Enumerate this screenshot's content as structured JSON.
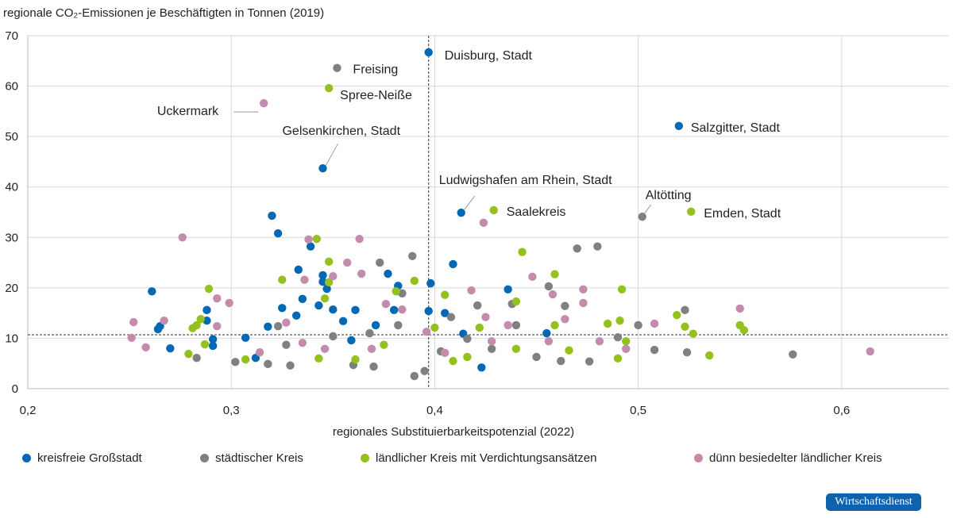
{
  "chart_data": {
    "type": "scatter",
    "title": "",
    "ylabel": "regionale CO₂-Emissionen je Beschäftigten in Tonnen (2019)",
    "xlabel": "regionales Substituierbarkeitspotenzial (2022)",
    "xlim": [
      0.2,
      0.65
    ],
    "ylim": [
      0,
      70
    ],
    "xticks": [
      "0,2",
      "0,3",
      "0,4",
      "0,5",
      "0,6"
    ],
    "xtick_values": [
      0.2,
      0.3,
      0.4,
      0.5,
      0.6
    ],
    "yticks": [
      "0",
      "10",
      "20",
      "30",
      "40",
      "50",
      "60",
      "70"
    ],
    "ytick_values": [
      0,
      10,
      20,
      30,
      40,
      50,
      60,
      70
    ],
    "grid": true,
    "legend_placement": "bottom",
    "reference_lines": {
      "x_mean": 0.397,
      "y_mean": 10.7
    },
    "series": [
      {
        "name": "kreisfreie Großstadt",
        "color": "#0068b4",
        "points": [
          [
            0.261,
            19.3
          ],
          [
            0.265,
            12.4
          ],
          [
            0.264,
            11.8
          ],
          [
            0.27,
            8.0
          ],
          [
            0.288,
            15.6
          ],
          [
            0.288,
            13.5
          ],
          [
            0.291,
            9.8
          ],
          [
            0.291,
            8.5
          ],
          [
            0.307,
            10.1
          ],
          [
            0.312,
            6.1
          ],
          [
            0.318,
            12.3
          ],
          [
            0.32,
            34.3
          ],
          [
            0.323,
            30.8
          ],
          [
            0.325,
            16.0
          ],
          [
            0.333,
            23.6
          ],
          [
            0.335,
            17.8
          ],
          [
            0.339,
            28.2
          ],
          [
            0.343,
            16.5
          ],
          [
            0.345,
            22.5
          ],
          [
            0.345,
            21.2
          ],
          [
            0.347,
            19.8
          ],
          [
            0.345,
            43.7
          ],
          [
            0.35,
            15.7
          ],
          [
            0.355,
            13.4
          ],
          [
            0.361,
            15.6
          ],
          [
            0.371,
            12.6
          ],
          [
            0.377,
            22.8
          ],
          [
            0.38,
            15.6
          ],
          [
            0.382,
            20.4
          ],
          [
            0.397,
            66.7
          ],
          [
            0.398,
            20.9
          ],
          [
            0.397,
            15.4
          ],
          [
            0.409,
            24.7
          ],
          [
            0.413,
            34.9
          ],
          [
            0.436,
            19.7
          ],
          [
            0.423,
            4.2
          ],
          [
            0.52,
            52.1
          ],
          [
            0.455,
            11.0
          ],
          [
            0.405,
            15.0
          ],
          [
            0.414,
            10.9
          ],
          [
            0.359,
            9.6
          ],
          [
            0.332,
            14.5
          ]
        ]
      },
      {
        "name": "städtischer Kreis",
        "color": "#808080",
        "points": [
          [
            0.283,
            6.1
          ],
          [
            0.302,
            5.3
          ],
          [
            0.318,
            4.9
          ],
          [
            0.329,
            4.6
          ],
          [
            0.352,
            63.6
          ],
          [
            0.373,
            25.0
          ],
          [
            0.389,
            26.3
          ],
          [
            0.39,
            2.5
          ],
          [
            0.395,
            3.5
          ],
          [
            0.36,
            4.7
          ],
          [
            0.37,
            4.4
          ],
          [
            0.384,
            18.9
          ],
          [
            0.403,
            7.4
          ],
          [
            0.416,
            9.9
          ],
          [
            0.438,
            16.8
          ],
          [
            0.456,
            20.3
          ],
          [
            0.47,
            27.8
          ],
          [
            0.48,
            28.2
          ],
          [
            0.502,
            34.1
          ],
          [
            0.5,
            12.6
          ],
          [
            0.508,
            7.7
          ],
          [
            0.523,
            15.6
          ],
          [
            0.524,
            7.2
          ],
          [
            0.576,
            6.8
          ],
          [
            0.464,
            16.4
          ],
          [
            0.476,
            5.4
          ],
          [
            0.45,
            6.3
          ],
          [
            0.428,
            7.9
          ],
          [
            0.421,
            16.5
          ],
          [
            0.368,
            11.0
          ],
          [
            0.382,
            12.6
          ],
          [
            0.323,
            12.4
          ],
          [
            0.35,
            10.4
          ],
          [
            0.408,
            14.2
          ],
          [
            0.462,
            5.5
          ],
          [
            0.49,
            10.2
          ],
          [
            0.44,
            12.6
          ],
          [
            0.327,
            8.7
          ]
        ]
      },
      {
        "name": "ländlicher Kreis mit Verdichtungsansätzen",
        "color": "#95c11f",
        "points": [
          [
            0.348,
            59.6
          ],
          [
            0.429,
            35.4
          ],
          [
            0.526,
            35.1
          ],
          [
            0.443,
            27.1
          ],
          [
            0.459,
            22.7
          ],
          [
            0.342,
            29.7
          ],
          [
            0.348,
            25.2
          ],
          [
            0.348,
            21.1
          ],
          [
            0.325,
            21.6
          ],
          [
            0.289,
            19.8
          ],
          [
            0.285,
            13.8
          ],
          [
            0.283,
            12.6
          ],
          [
            0.281,
            12.0
          ],
          [
            0.279,
            6.9
          ],
          [
            0.287,
            8.8
          ],
          [
            0.307,
            5.8
          ],
          [
            0.346,
            17.9
          ],
          [
            0.39,
            21.4
          ],
          [
            0.381,
            19.3
          ],
          [
            0.405,
            18.6
          ],
          [
            0.4,
            12.1
          ],
          [
            0.492,
            19.7
          ],
          [
            0.491,
            13.5
          ],
          [
            0.485,
            12.9
          ],
          [
            0.519,
            14.6
          ],
          [
            0.523,
            12.3
          ],
          [
            0.527,
            10.9
          ],
          [
            0.535,
            6.6
          ],
          [
            0.55,
            12.6
          ],
          [
            0.552,
            11.6
          ],
          [
            0.494,
            9.4
          ],
          [
            0.49,
            6.0
          ],
          [
            0.422,
            12.1
          ],
          [
            0.44,
            7.9
          ],
          [
            0.459,
            12.6
          ],
          [
            0.409,
            5.5
          ],
          [
            0.361,
            5.8
          ],
          [
            0.343,
            6.0
          ],
          [
            0.375,
            8.7
          ],
          [
            0.416,
            6.3
          ],
          [
            0.466,
            7.6
          ],
          [
            0.44,
            17.3
          ]
        ]
      },
      {
        "name": "dünn besiedelter ländlicher Kreis",
        "color": "#c38bac",
        "points": [
          [
            0.316,
            56.6
          ],
          [
            0.276,
            30.0
          ],
          [
            0.363,
            29.7
          ],
          [
            0.338,
            29.6
          ],
          [
            0.424,
            32.9
          ],
          [
            0.357,
            25.0
          ],
          [
            0.35,
            22.3
          ],
          [
            0.364,
            22.8
          ],
          [
            0.336,
            21.6
          ],
          [
            0.448,
            22.2
          ],
          [
            0.418,
            19.5
          ],
          [
            0.473,
            19.7
          ],
          [
            0.458,
            18.7
          ],
          [
            0.293,
            17.9
          ],
          [
            0.299,
            17.0
          ],
          [
            0.267,
            13.5
          ],
          [
            0.252,
            13.2
          ],
          [
            0.251,
            10.1
          ],
          [
            0.258,
            8.2
          ],
          [
            0.293,
            12.4
          ],
          [
            0.314,
            7.2
          ],
          [
            0.55,
            15.9
          ],
          [
            0.508,
            12.9
          ],
          [
            0.614,
            7.4
          ],
          [
            0.473,
            17.0
          ],
          [
            0.464,
            13.8
          ],
          [
            0.436,
            12.6
          ],
          [
            0.425,
            14.2
          ],
          [
            0.405,
            7.1
          ],
          [
            0.428,
            9.4
          ],
          [
            0.384,
            15.7
          ],
          [
            0.369,
            7.9
          ],
          [
            0.346,
            7.9
          ],
          [
            0.335,
            9.1
          ],
          [
            0.327,
            13.1
          ],
          [
            0.456,
            9.4
          ],
          [
            0.481,
            9.4
          ],
          [
            0.494,
            7.9
          ],
          [
            0.396,
            11.3
          ],
          [
            0.376,
            16.8
          ]
        ]
      }
    ],
    "annotations": [
      {
        "text": "Duisburg, Stadt",
        "x": 0.397,
        "y": 66.7
      },
      {
        "text": "Freising",
        "x": 0.352,
        "y": 63.6
      },
      {
        "text": "Spree-Neiße",
        "x": 0.348,
        "y": 59.6
      },
      {
        "text": "Uckermark",
        "x": 0.316,
        "y": 56.6
      },
      {
        "text": "Gelsenkirchen, Stadt",
        "x": 0.345,
        "y": 43.7
      },
      {
        "text": "Salzgitter, Stadt",
        "x": 0.52,
        "y": 52.1
      },
      {
        "text": "Ludwigshafen am Rhein, Stadt",
        "x": 0.413,
        "y": 34.9
      },
      {
        "text": "Saalekreis",
        "x": 0.429,
        "y": 35.4
      },
      {
        "text": "Altötting",
        "x": 0.502,
        "y": 34.1
      },
      {
        "text": "Emden, Stadt",
        "x": 0.526,
        "y": 35.1
      }
    ]
  },
  "brand": "Wirtschaftsdienst"
}
